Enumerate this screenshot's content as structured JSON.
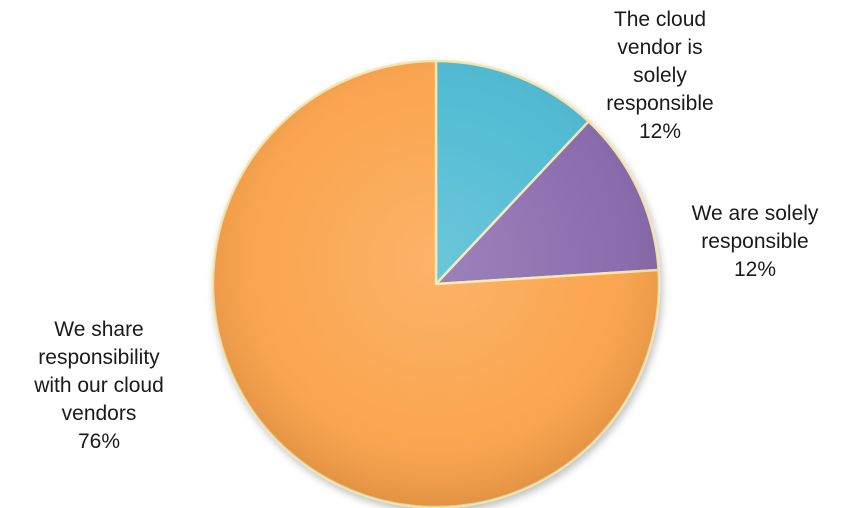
{
  "chart_data": {
    "type": "pie",
    "start_angle_deg": 0,
    "direction": "clockwise",
    "slices": [
      {
        "label_lines": [
          "The cloud",
          "vendor is",
          "solely",
          "responsible"
        ],
        "percent_label": "12%",
        "value": 12,
        "color": "#4bb9d2"
      },
      {
        "label_lines": [
          "We are solely",
          "responsible"
        ],
        "percent_label": "12%",
        "value": 12,
        "color": "#8767ac"
      },
      {
        "label_lines": [
          "We share",
          "responsibility",
          "with our cloud",
          "vendors"
        ],
        "percent_label": "76%",
        "value": 76,
        "color": "#fba24a"
      }
    ]
  }
}
